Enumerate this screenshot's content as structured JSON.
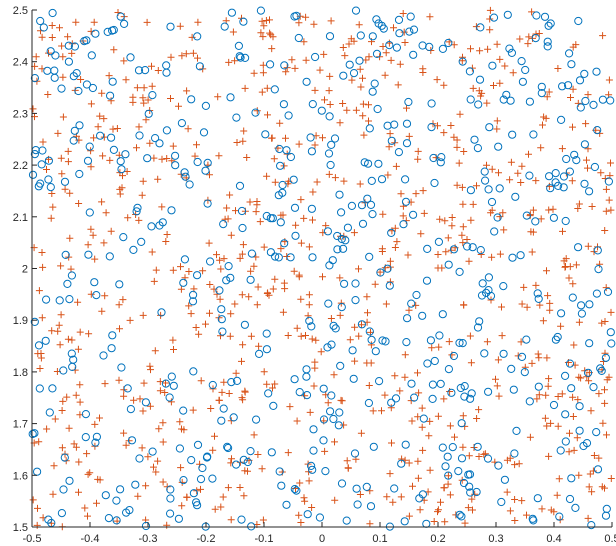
{
  "chart_data": {
    "type": "scatter",
    "title": "",
    "xlabel": "",
    "ylabel": "",
    "xlim": [
      -0.5,
      0.5
    ],
    "ylim": [
      1.5,
      2.5
    ],
    "xticks": [
      "-0.5",
      "-0.4",
      "-0.3",
      "-0.2",
      "-0.1",
      "0",
      "0.1",
      "0.2",
      "0.3",
      "0.4",
      "0.5"
    ],
    "yticks": [
      "1.5",
      "1.6",
      "1.7",
      "1.8",
      "1.9",
      "2",
      "2.1",
      "2.2",
      "2.3",
      "2.4",
      "2.5"
    ],
    "grid": false,
    "legend": "none",
    "note": "Points are uniformly scattered over the whole axis box; approx. 600 circle markers and 900 plus markers. Positions are procedurally reproduced in data units.",
    "series": [
      {
        "marker": "circle",
        "color": "#0072BD",
        "count": 600,
        "seed": 12345
      },
      {
        "marker": "plus",
        "color": "#D95319",
        "count": 900,
        "seed": 67890
      }
    ]
  }
}
